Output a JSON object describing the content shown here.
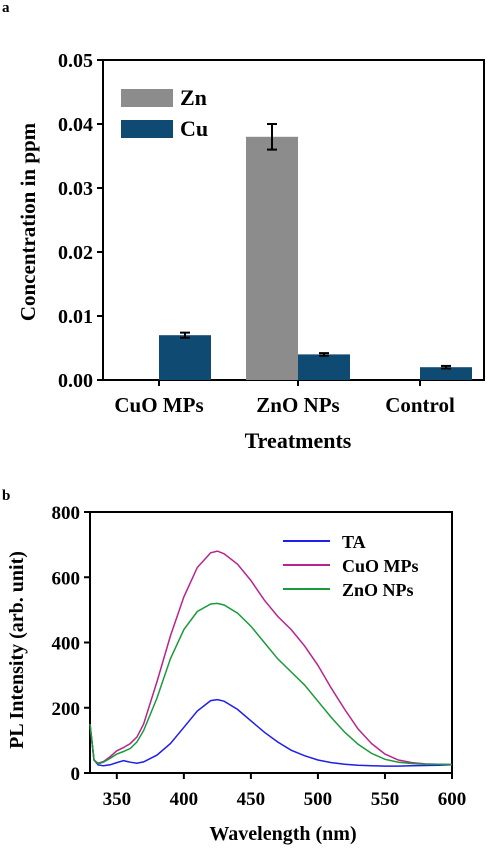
{
  "panel_a_label": "a",
  "panel_b_label": "b",
  "chart_data": [
    {
      "type": "bar",
      "xlabel": "Treatments",
      "ylabel": "Concentration in ppm",
      "ylim": [
        0,
        0.05
      ],
      "yticks": [
        "0.00",
        "0.01",
        "0.02",
        "0.03",
        "0.04",
        "0.05"
      ],
      "grid": false,
      "legend": "top-left",
      "categories": [
        "CuO MPs",
        "ZnO NPs",
        "Control"
      ],
      "series": [
        {
          "name": "Zn",
          "color": "#8c8c8c",
          "values": [
            0,
            0.038,
            0
          ],
          "errors": [
            0,
            0.002,
            0
          ]
        },
        {
          "name": "Cu",
          "color": "#0f4a72",
          "values": [
            0.007,
            0.004,
            0.002
          ],
          "errors": [
            0.0004,
            0.0002,
            0.0002
          ]
        }
      ]
    },
    {
      "type": "line",
      "xlabel": "Wavelength (nm)",
      "ylabel": "PL Intensity (arb. unit)",
      "xlim": [
        330,
        600
      ],
      "ylim": [
        0,
        800
      ],
      "xticks": [
        "350",
        "400",
        "450",
        "500",
        "550",
        "600"
      ],
      "yticks": [
        "0",
        "200",
        "400",
        "600",
        "800"
      ],
      "grid": false,
      "legend": "top-right",
      "x": [
        330,
        333,
        336,
        340,
        345,
        350,
        355,
        360,
        365,
        370,
        380,
        390,
        400,
        410,
        420,
        425,
        430,
        440,
        450,
        460,
        470,
        480,
        490,
        500,
        510,
        520,
        530,
        540,
        550,
        560,
        570,
        580,
        590,
        600
      ],
      "series": [
        {
          "name": "TA",
          "color": "#1f1fe6",
          "values": [
            150,
            40,
            25,
            22,
            25,
            32,
            38,
            33,
            30,
            34,
            55,
            90,
            140,
            190,
            222,
            225,
            220,
            195,
            160,
            125,
            95,
            70,
            53,
            40,
            32,
            27,
            24,
            22,
            21,
            21,
            22,
            23,
            24,
            25
          ]
        },
        {
          "name": "CuO MPs",
          "color": "#b8238f",
          "values": [
            150,
            40,
            30,
            35,
            50,
            68,
            78,
            90,
            110,
            150,
            280,
            420,
            540,
            630,
            675,
            680,
            672,
            640,
            590,
            530,
            480,
            440,
            390,
            330,
            260,
            195,
            135,
            90,
            58,
            40,
            32,
            28,
            27,
            26
          ]
        },
        {
          "name": "ZnO NPs",
          "color": "#1a9a3a",
          "values": [
            150,
            40,
            28,
            33,
            45,
            58,
            66,
            75,
            95,
            130,
            230,
            350,
            440,
            495,
            518,
            520,
            515,
            490,
            450,
            400,
            350,
            310,
            270,
            220,
            170,
            125,
            88,
            60,
            42,
            33,
            29,
            27,
            27,
            26
          ]
        }
      ]
    }
  ]
}
